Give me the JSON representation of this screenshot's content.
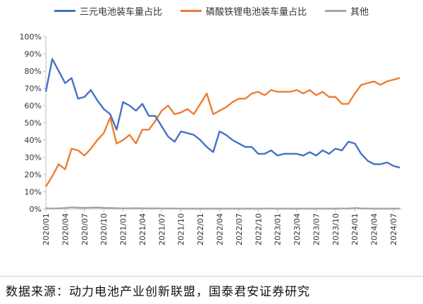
{
  "chart_data": {
    "type": "line",
    "title": "",
    "xlabel": "",
    "ylabel": "",
    "ylim": [
      0,
      100
    ],
    "ytick_labels": [
      "0%",
      "10%",
      "20%",
      "30%",
      "40%",
      "50%",
      "60%",
      "70%",
      "80%",
      "90%",
      "100%"
    ],
    "xtick_labels": [
      "2020/01",
      "2020/04",
      "2020/07",
      "2020/10",
      "2021/01",
      "2021/04",
      "2021/07",
      "2021/10",
      "2022/01",
      "2022/04",
      "2022/07",
      "2022/10",
      "2023/01",
      "2023/04",
      "2023/07",
      "2023/10",
      "2024/01",
      "2024/04",
      "2024/07"
    ],
    "legend_position": "top",
    "series": [
      {
        "name": "三元电池装车量占比",
        "color": "#4472C4",
        "values": [
          68,
          87,
          80,
          73,
          76,
          64,
          65,
          69,
          63,
          58,
          55,
          46,
          62,
          60,
          57,
          61,
          54,
          54,
          48,
          42,
          39,
          45,
          44,
          43,
          40,
          36,
          33,
          45,
          43,
          40,
          38,
          36,
          36,
          32,
          32,
          34,
          31,
          32,
          32,
          32,
          31,
          33,
          31,
          34,
          32,
          35,
          34,
          39,
          38,
          32,
          28,
          26,
          26,
          27,
          25,
          24
        ]
      },
      {
        "name": "磷酸铁锂电池装车量占比",
        "color": "#ED7D31",
        "values": [
          13,
          19,
          26,
          23,
          35,
          34,
          31,
          35,
          40,
          44,
          53,
          38,
          40,
          43,
          38,
          46,
          46,
          51,
          57,
          60,
          55,
          56,
          58,
          55,
          61,
          67,
          55,
          57,
          59,
          62,
          64,
          64,
          67,
          68,
          66,
          69,
          68,
          68,
          68,
          69,
          67,
          69,
          66,
          68,
          65,
          65,
          61,
          61,
          67,
          72,
          73,
          74,
          72,
          74,
          75,
          76
        ]
      },
      {
        "name": "其他",
        "color": "#A5A5A5",
        "values": [
          0.5,
          0.3,
          0.4,
          0.6,
          1,
          0.8,
          0.7,
          0.8,
          0.9,
          0.7,
          0.6,
          0.5,
          0.4,
          0.4,
          0.5,
          0.4,
          0.4,
          0.4,
          0.3,
          0.3,
          0.3,
          0.2,
          0.2,
          0.2,
          0.2,
          0.2,
          0.2,
          0.2,
          0.2,
          0.2,
          0.2,
          0.2,
          0.2,
          0.2,
          0.2,
          0.3,
          0.2,
          0.2,
          0.2,
          0.2,
          0.2,
          0.2,
          0.2,
          0.2,
          0.2,
          0.2,
          0.3,
          0.3,
          0.6,
          0.4,
          0.3,
          0.2,
          0.2,
          0.2,
          0.2,
          0.2
        ]
      }
    ]
  },
  "footer": "数据来源：动力电池产业创新联盟，国泰君安证券研究"
}
